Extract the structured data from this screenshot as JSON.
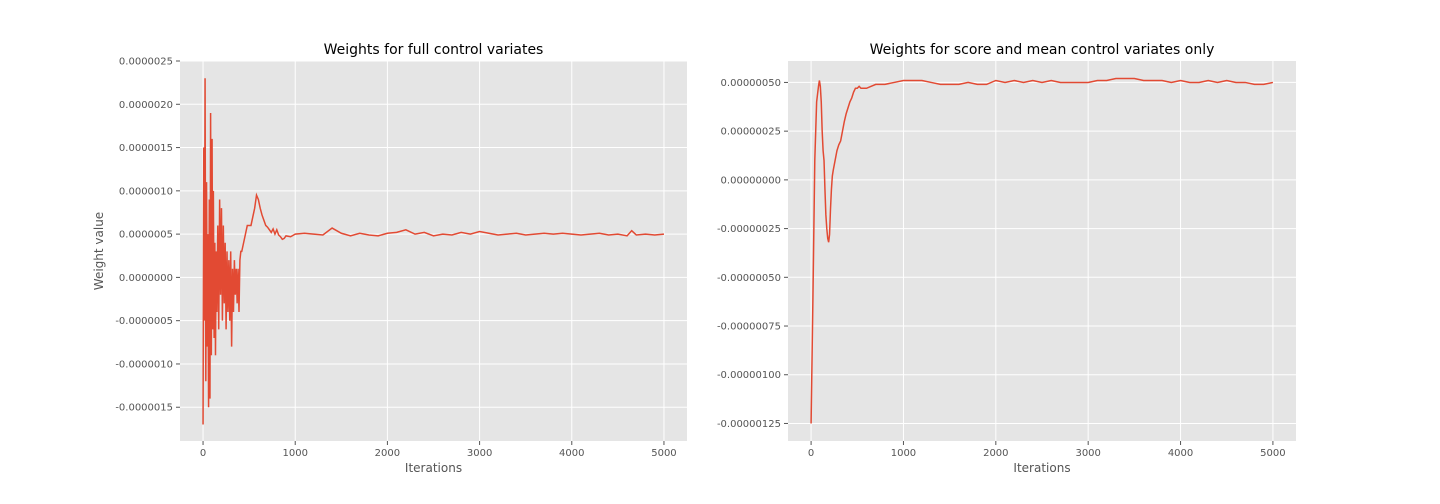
{
  "chart_data": [
    {
      "type": "line",
      "title": "Weights for full control variates",
      "xlabel": "Iterations",
      "ylabel": "Weight value",
      "xlim": [
        -250,
        5250
      ],
      "ylim": [
        -1.89e-06,
        2.5e-06
      ],
      "xticks": [
        0,
        1000,
        2000,
        3000,
        4000,
        5000
      ],
      "yticks": [
        "-0.0000015",
        "-0.0000010",
        "-0.0000005",
        "0.0000000",
        "0.0000005",
        "0.0000010",
        "0.0000015",
        "0.0000020",
        "0.0000025"
      ],
      "ytick_values": [
        -1.5e-06,
        -1e-06,
        -5e-07,
        0,
        5e-07,
        1e-06,
        1.5e-06,
        2e-06,
        2.5e-06
      ],
      "grid": true,
      "series": [
        {
          "color": "#E24A33",
          "x": [
            0,
            8,
            15,
            22,
            30,
            38,
            45,
            52,
            60,
            68,
            75,
            82,
            90,
            98,
            105,
            112,
            120,
            128,
            135,
            142,
            150,
            160,
            170,
            180,
            190,
            200,
            210,
            220,
            230,
            240,
            250,
            260,
            270,
            280,
            290,
            300,
            310,
            320,
            330,
            340,
            350,
            360,
            370,
            380,
            390,
            400,
            410,
            420,
            440,
            460,
            480,
            500,
            520,
            540,
            560,
            580,
            600,
            620,
            640,
            660,
            680,
            700,
            720,
            740,
            760,
            780,
            800,
            820,
            840,
            860,
            880,
            900,
            950,
            1000,
            1100,
            1200,
            1300,
            1400,
            1500,
            1600,
            1700,
            1800,
            1900,
            2000,
            2100,
            2200,
            2300,
            2400,
            2500,
            2600,
            2700,
            2800,
            2900,
            3000,
            3100,
            3200,
            3300,
            3400,
            3500,
            3600,
            3700,
            3800,
            3900,
            4000,
            4100,
            4200,
            4300,
            4400,
            4500,
            4600,
            4650,
            4700,
            4800,
            4900,
            5000
          ],
          "y": [
            -1.7e-06,
            1.5e-06,
            -5e-07,
            2.3e-06,
            -1.2e-06,
            1.1e-06,
            -8e-07,
            5e-07,
            -1.5e-06,
            9e-07,
            -1.4e-06,
            1.9e-06,
            -9e-07,
            1.6e-06,
            -6e-07,
            1e-06,
            -7e-07,
            4e-07,
            -9e-07,
            3e-07,
            -4e-07,
            6e-07,
            -6e-07,
            9e-07,
            -2e-07,
            8e-07,
            -5e-07,
            6e-07,
            -3e-07,
            4e-07,
            -6e-07,
            3e-07,
            -4e-07,
            2e-07,
            -5e-07,
            3e-07,
            -8e-07,
            1e-07,
            -4e-07,
            2e-07,
            -2e-07,
            1e-07,
            -3e-07,
            1e-07,
            -4e-07,
            2e-07,
            3e-07,
            3e-07,
            4e-07,
            5e-07,
            6e-07,
            6e-07,
            6e-07,
            7e-07,
            8e-07,
            9.5e-07,
            9e-07,
            8e-07,
            7.2e-07,
            6.6e-07,
            6e-07,
            5.8e-07,
            5.5e-07,
            5.2e-07,
            5.6e-07,
            5e-07,
            5.5e-07,
            4.9e-07,
            4.7e-07,
            4.4e-07,
            4.5e-07,
            4.8e-07,
            4.7e-07,
            5e-07,
            5.1e-07,
            5e-07,
            4.9e-07,
            5.7e-07,
            5.1e-07,
            4.8e-07,
            5.1e-07,
            4.9e-07,
            4.8e-07,
            5.1e-07,
            5.2e-07,
            5.5e-07,
            5e-07,
            5.2e-07,
            4.8e-07,
            5e-07,
            4.9e-07,
            5.2e-07,
            5e-07,
            5.3e-07,
            5.1e-07,
            4.9e-07,
            5e-07,
            5.1e-07,
            4.9e-07,
            5e-07,
            5.1e-07,
            5e-07,
            5.1e-07,
            5e-07,
            4.9e-07,
            5e-07,
            5.1e-07,
            4.9e-07,
            5e-07,
            4.8e-07,
            5.4e-07,
            4.9e-07,
            5e-07,
            4.9e-07,
            5e-07
          ]
        }
      ]
    },
    {
      "type": "line",
      "title": "Weights for score and mean control variates only",
      "xlabel": "Iterations",
      "ylabel": "",
      "xlim": [
        -250,
        5250
      ],
      "ylim": [
        -1.34e-06,
        6.1e-07
      ],
      "xticks": [
        0,
        1000,
        2000,
        3000,
        4000,
        5000
      ],
      "yticks": [
        "-0.00000125",
        "-0.00000100",
        "-0.00000075",
        "-0.00000050",
        "-0.00000025",
        "0.00000000",
        "0.00000025",
        "0.00000050"
      ],
      "ytick_values": [
        -1.25e-06,
        -1e-06,
        -7.5e-07,
        -5e-07,
        -2.5e-07,
        0,
        2.5e-07,
        5e-07
      ],
      "grid": true,
      "series": [
        {
          "color": "#E24A33",
          "x": [
            0,
            20,
            40,
            60,
            80,
            90,
            100,
            110,
            120,
            130,
            140,
            150,
            160,
            170,
            180,
            190,
            200,
            210,
            220,
            230,
            240,
            260,
            280,
            300,
            320,
            340,
            360,
            380,
            400,
            420,
            440,
            460,
            480,
            500,
            520,
            540,
            560,
            580,
            600,
            650,
            700,
            750,
            800,
            900,
            1000,
            1100,
            1200,
            1300,
            1400,
            1500,
            1600,
            1700,
            1800,
            1900,
            2000,
            2100,
            2200,
            2300,
            2400,
            2500,
            2600,
            2700,
            2800,
            2900,
            3000,
            3100,
            3200,
            3300,
            3400,
            3500,
            3600,
            3700,
            3800,
            3900,
            4000,
            4100,
            4200,
            4300,
            4400,
            4500,
            4600,
            4700,
            4800,
            4900,
            5000
          ],
          "y": [
            -1.25e-06,
            -6e-07,
            1e-07,
            4e-07,
            4.8e-07,
            5.1e-07,
            4.8e-07,
            4e-07,
            2.5e-07,
            1.5e-07,
            1e-07,
            -5e-08,
            -1.8e-07,
            -2.5e-07,
            -3e-07,
            -3.2e-07,
            -2.8e-07,
            -1.5e-07,
            -5e-08,
            2e-08,
            5e-08,
            1e-07,
            1.5e-07,
            1.8e-07,
            2e-07,
            2.5e-07,
            3e-07,
            3.4e-07,
            3.7e-07,
            4e-07,
            4.2e-07,
            4.5e-07,
            4.7e-07,
            4.7e-07,
            4.8e-07,
            4.7e-07,
            4.7e-07,
            4.7e-07,
            4.7e-07,
            4.8e-07,
            4.9e-07,
            4.9e-07,
            4.9e-07,
            5e-07,
            5.1e-07,
            5.1e-07,
            5.1e-07,
            5e-07,
            4.9e-07,
            4.9e-07,
            4.9e-07,
            5e-07,
            4.9e-07,
            4.9e-07,
            5.1e-07,
            5e-07,
            5.1e-07,
            5e-07,
            5.1e-07,
            5e-07,
            5.1e-07,
            5e-07,
            5e-07,
            5e-07,
            5e-07,
            5.1e-07,
            5.1e-07,
            5.2e-07,
            5.2e-07,
            5.2e-07,
            5.1e-07,
            5.1e-07,
            5.1e-07,
            5e-07,
            5.1e-07,
            5e-07,
            5e-07,
            5.1e-07,
            5e-07,
            5.1e-07,
            5e-07,
            5e-07,
            4.9e-07,
            4.9e-07,
            5e-07
          ]
        }
      ]
    }
  ]
}
